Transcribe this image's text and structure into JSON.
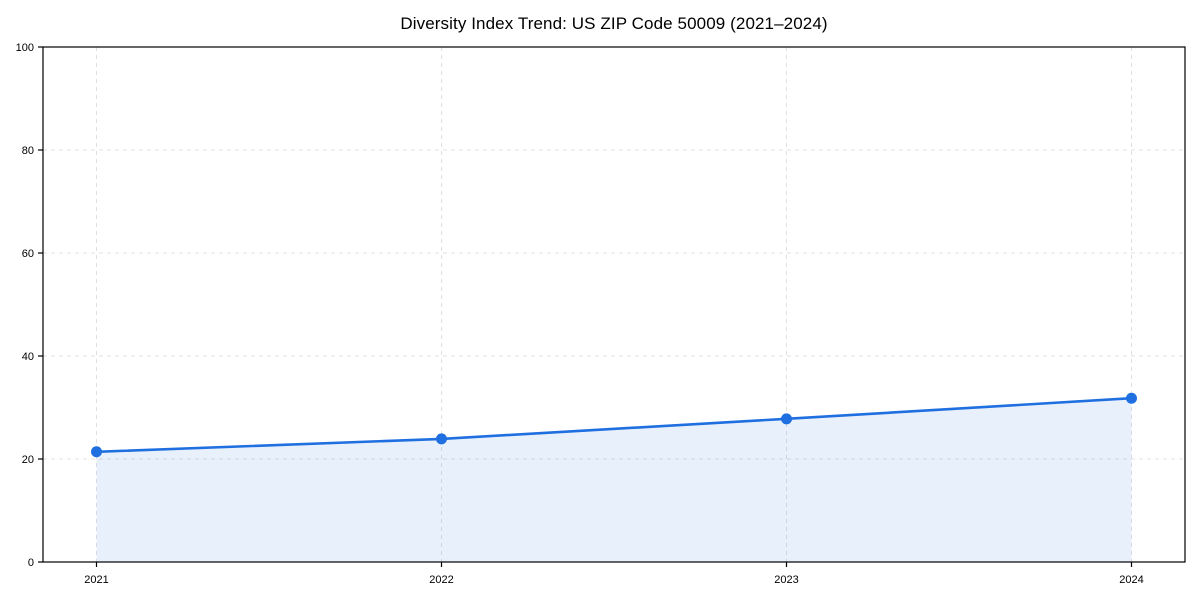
{
  "title": "Diversity Index Trend: US ZIP Code 50009 (2021–2024)",
  "chart_data": {
    "type": "line",
    "title": "Diversity Index Trend: US ZIP Code 50009 (2021–2024)",
    "x": [
      2021,
      2022,
      2023,
      2024
    ],
    "series": [
      {
        "name": "Diversity Index",
        "values": [
          21.4,
          23.9,
          27.8,
          31.8
        ]
      }
    ],
    "xlabel": "",
    "ylabel": "",
    "ylim": [
      0,
      100
    ],
    "yticks": [
      0,
      20,
      40,
      60,
      80,
      100
    ],
    "xtick_labels": [
      "2021",
      "2022",
      "2023",
      "2024"
    ],
    "grid": true,
    "grid_style": "dashed",
    "legend_position": "none",
    "area_fill": true,
    "marker": "circle",
    "colors": {
      "line": "#1f6fe0",
      "marker": "#1f6fe0",
      "fill": "#1f6fe0",
      "fill_opacity": 0.1,
      "grid": "#e0e0e0",
      "axis": "#000000",
      "text": "#000000",
      "background": "#ffffff"
    }
  }
}
